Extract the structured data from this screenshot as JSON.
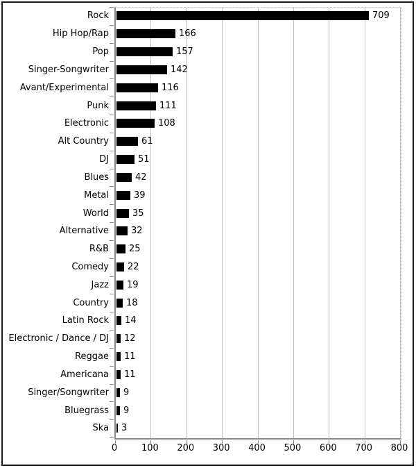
{
  "chart_data": {
    "type": "bar",
    "orientation": "horizontal",
    "title": "",
    "xlabel": "",
    "ylabel": "",
    "categories": [
      "Rock",
      "Hip Hop/Rap",
      "Pop",
      "Singer-Songwriter",
      "Avant/Experimental",
      "Punk",
      "Electronic",
      "Alt Country",
      "DJ",
      "Blues",
      "Metal",
      "World",
      "Alternative",
      "R&B",
      "Comedy",
      "Jazz",
      "Country",
      "Latin Rock",
      "Electronic / Dance / DJ",
      "Reggae",
      "Americana",
      "Singer/Songwriter",
      "Bluegrass",
      "Ska"
    ],
    "values": [
      709,
      166,
      157,
      142,
      116,
      111,
      108,
      61,
      51,
      42,
      39,
      35,
      32,
      25,
      22,
      19,
      18,
      14,
      12,
      11,
      11,
      9,
      9,
      3
    ],
    "x_ticks": [
      0,
      100,
      200,
      300,
      400,
      500,
      600,
      700,
      800
    ],
    "xlim": [
      0,
      800
    ],
    "grid": true,
    "legend": false,
    "value_labels": true,
    "colors": {
      "bar": "#000000",
      "axis": "#8c8c8c",
      "gridline": "#bdbdbd",
      "text": "#000000",
      "frame": "#1c1c1c",
      "background": "#ffffff"
    }
  }
}
